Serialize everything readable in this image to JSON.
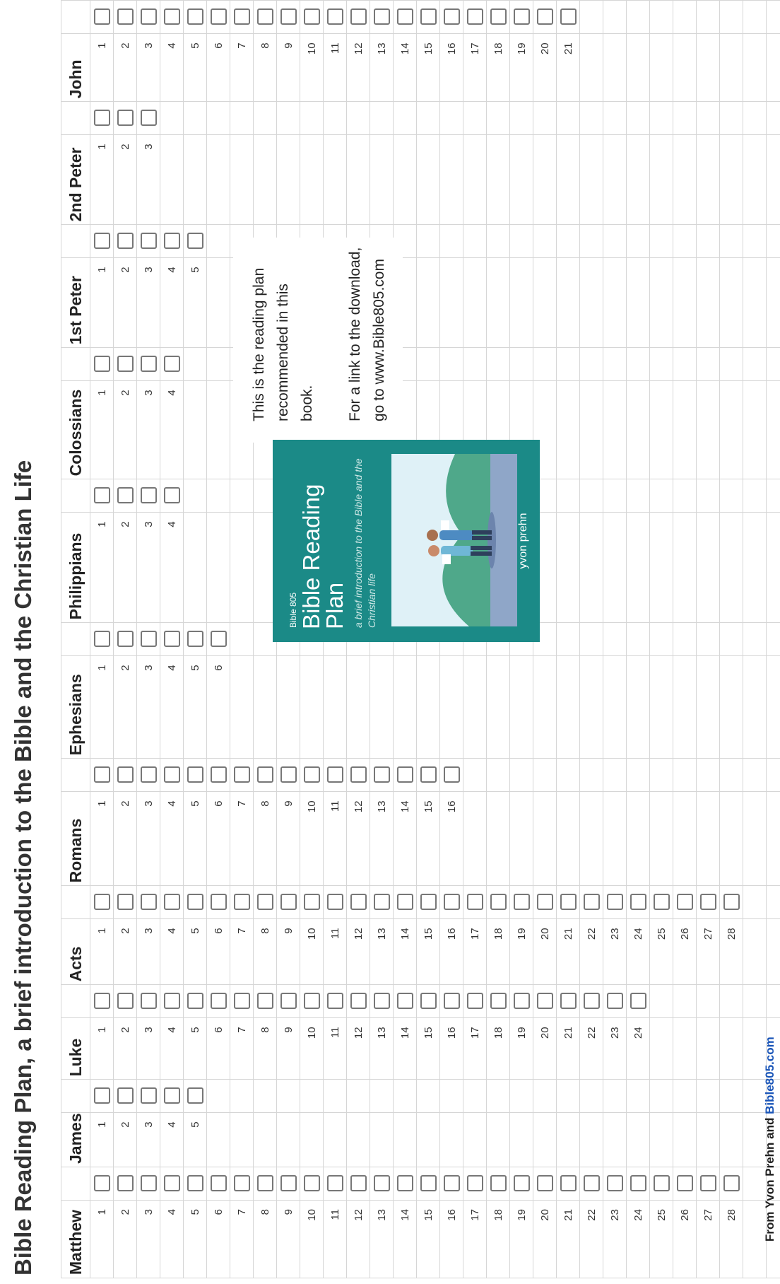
{
  "title": "Bible Reading Plan, a brief introduction to the Bible and the Christian Life",
  "books": [
    {
      "name": "Matthew",
      "chapters": [
        1,
        2,
        3,
        4,
        5,
        6,
        7,
        8,
        9,
        10,
        11,
        12,
        13,
        14,
        15,
        16,
        17,
        18,
        19,
        20,
        21,
        22,
        23,
        24,
        25,
        26,
        27,
        28
      ]
    },
    {
      "name": "James",
      "chapters": [
        1,
        2,
        3,
        4,
        5
      ]
    },
    {
      "name": "Luke",
      "chapters": [
        1,
        2,
        3,
        4,
        5,
        6,
        7,
        8,
        9,
        10,
        11,
        12,
        13,
        14,
        15,
        16,
        17,
        18,
        19,
        20,
        21,
        22,
        23,
        24
      ]
    },
    {
      "name": "Acts",
      "chapters": [
        1,
        2,
        3,
        4,
        5,
        6,
        7,
        8,
        9,
        10,
        11,
        12,
        13,
        14,
        15,
        16,
        17,
        18,
        19,
        20,
        21,
        22,
        23,
        24,
        25,
        26,
        27,
        28
      ]
    },
    {
      "name": "Romans",
      "chapters": [
        1,
        2,
        3,
        4,
        5,
        6,
        7,
        8,
        9,
        10,
        11,
        12,
        13,
        14,
        15,
        16
      ]
    },
    {
      "name": "Ephesians",
      "chapters": [
        1,
        2,
        3,
        4,
        5,
        6
      ]
    },
    {
      "name": "Philippians",
      "chapters": [
        1,
        2,
        3,
        4
      ]
    },
    {
      "name": "Colossians",
      "chapters": [
        1,
        2,
        3,
        4
      ]
    },
    {
      "name": "1st Peter",
      "chapters": [
        1,
        2,
        3,
        4,
        5
      ]
    },
    {
      "name": "2nd Peter",
      "chapters": [
        1,
        2,
        3
      ]
    },
    {
      "name": "John",
      "chapters": [
        1,
        2,
        3,
        4,
        5,
        6,
        7,
        8,
        9,
        10,
        11,
        12,
        13,
        14,
        15,
        16,
        17,
        18,
        19,
        20,
        21
      ]
    }
  ],
  "note": {
    "paragraphs": [
      "This is the reading plan recommended in this book.",
      "For a link to the download, go to www.Bible805.com"
    ]
  },
  "cover": {
    "series": "Bible 805",
    "title": "Bible Reading Plan",
    "subtitle": "a brief introduction to the Bible and the Christian life",
    "author": "yvon prehn"
  },
  "footer": {
    "text": "From Yvon Prehn and",
    "link": "Bible805.com"
  }
}
